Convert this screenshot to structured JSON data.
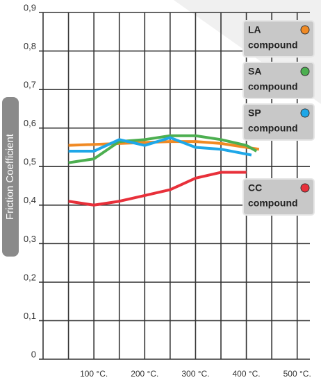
{
  "chart_data": {
    "type": "line",
    "y_label": "Friction Coefficient",
    "legend_suffix": "compound",
    "xlim": [
      0,
      525
    ],
    "ylim": [
      0,
      0.9
    ],
    "xticks": [
      {
        "value": 100,
        "label": "100 °C."
      },
      {
        "value": 200,
        "label": "200 °C."
      },
      {
        "value": 300,
        "label": "300 °C."
      },
      {
        "value": 400,
        "label": "400 °C."
      },
      {
        "value": 500,
        "label": "500 °C."
      }
    ],
    "xgrid": [
      0,
      50,
      100,
      150,
      200,
      250,
      300,
      350,
      400,
      450,
      500
    ],
    "yticks": [
      0,
      {
        "value": 0.1,
        "label": "0,1"
      },
      {
        "value": 0.2,
        "label": "0,2"
      },
      {
        "value": 0.3,
        "label": "0,3"
      },
      {
        "value": 0.4,
        "label": "0,4"
      },
      {
        "value": 0.5,
        "label": "0,5"
      },
      {
        "value": 0.6,
        "label": "0,6"
      },
      {
        "value": 0.7,
        "label": "0,7"
      },
      {
        "value": 0.8,
        "label": "0,8"
      },
      {
        "value": 0.9,
        "label": "0,9"
      }
    ],
    "grid": true,
    "series": [
      {
        "name": "LA",
        "color": "#f08a24",
        "x": [
          50,
          150,
          250,
          300,
          350,
          425
        ],
        "values": [
          0.555,
          0.56,
          0.565,
          0.565,
          0.56,
          0.545
        ]
      },
      {
        "name": "SA",
        "color": "#4caf50",
        "x": [
          50,
          100,
          150,
          200,
          250,
          300,
          350,
          400,
          420
        ],
        "values": [
          0.51,
          0.52,
          0.565,
          0.57,
          0.58,
          0.58,
          0.57,
          0.555,
          0.54
        ]
      },
      {
        "name": "SP",
        "color": "#1ea7e8",
        "x": [
          50,
          100,
          150,
          200,
          250,
          300,
          350,
          410
        ],
        "values": [
          0.54,
          0.54,
          0.57,
          0.555,
          0.575,
          0.55,
          0.545,
          0.53
        ]
      },
      {
        "name": "CC",
        "color": "#e8303a",
        "x": [
          50,
          100,
          150,
          200,
          250,
          300,
          350,
          400
        ],
        "values": [
          0.41,
          0.4,
          0.41,
          0.425,
          0.44,
          0.47,
          0.485,
          0.485
        ]
      }
    ]
  }
}
